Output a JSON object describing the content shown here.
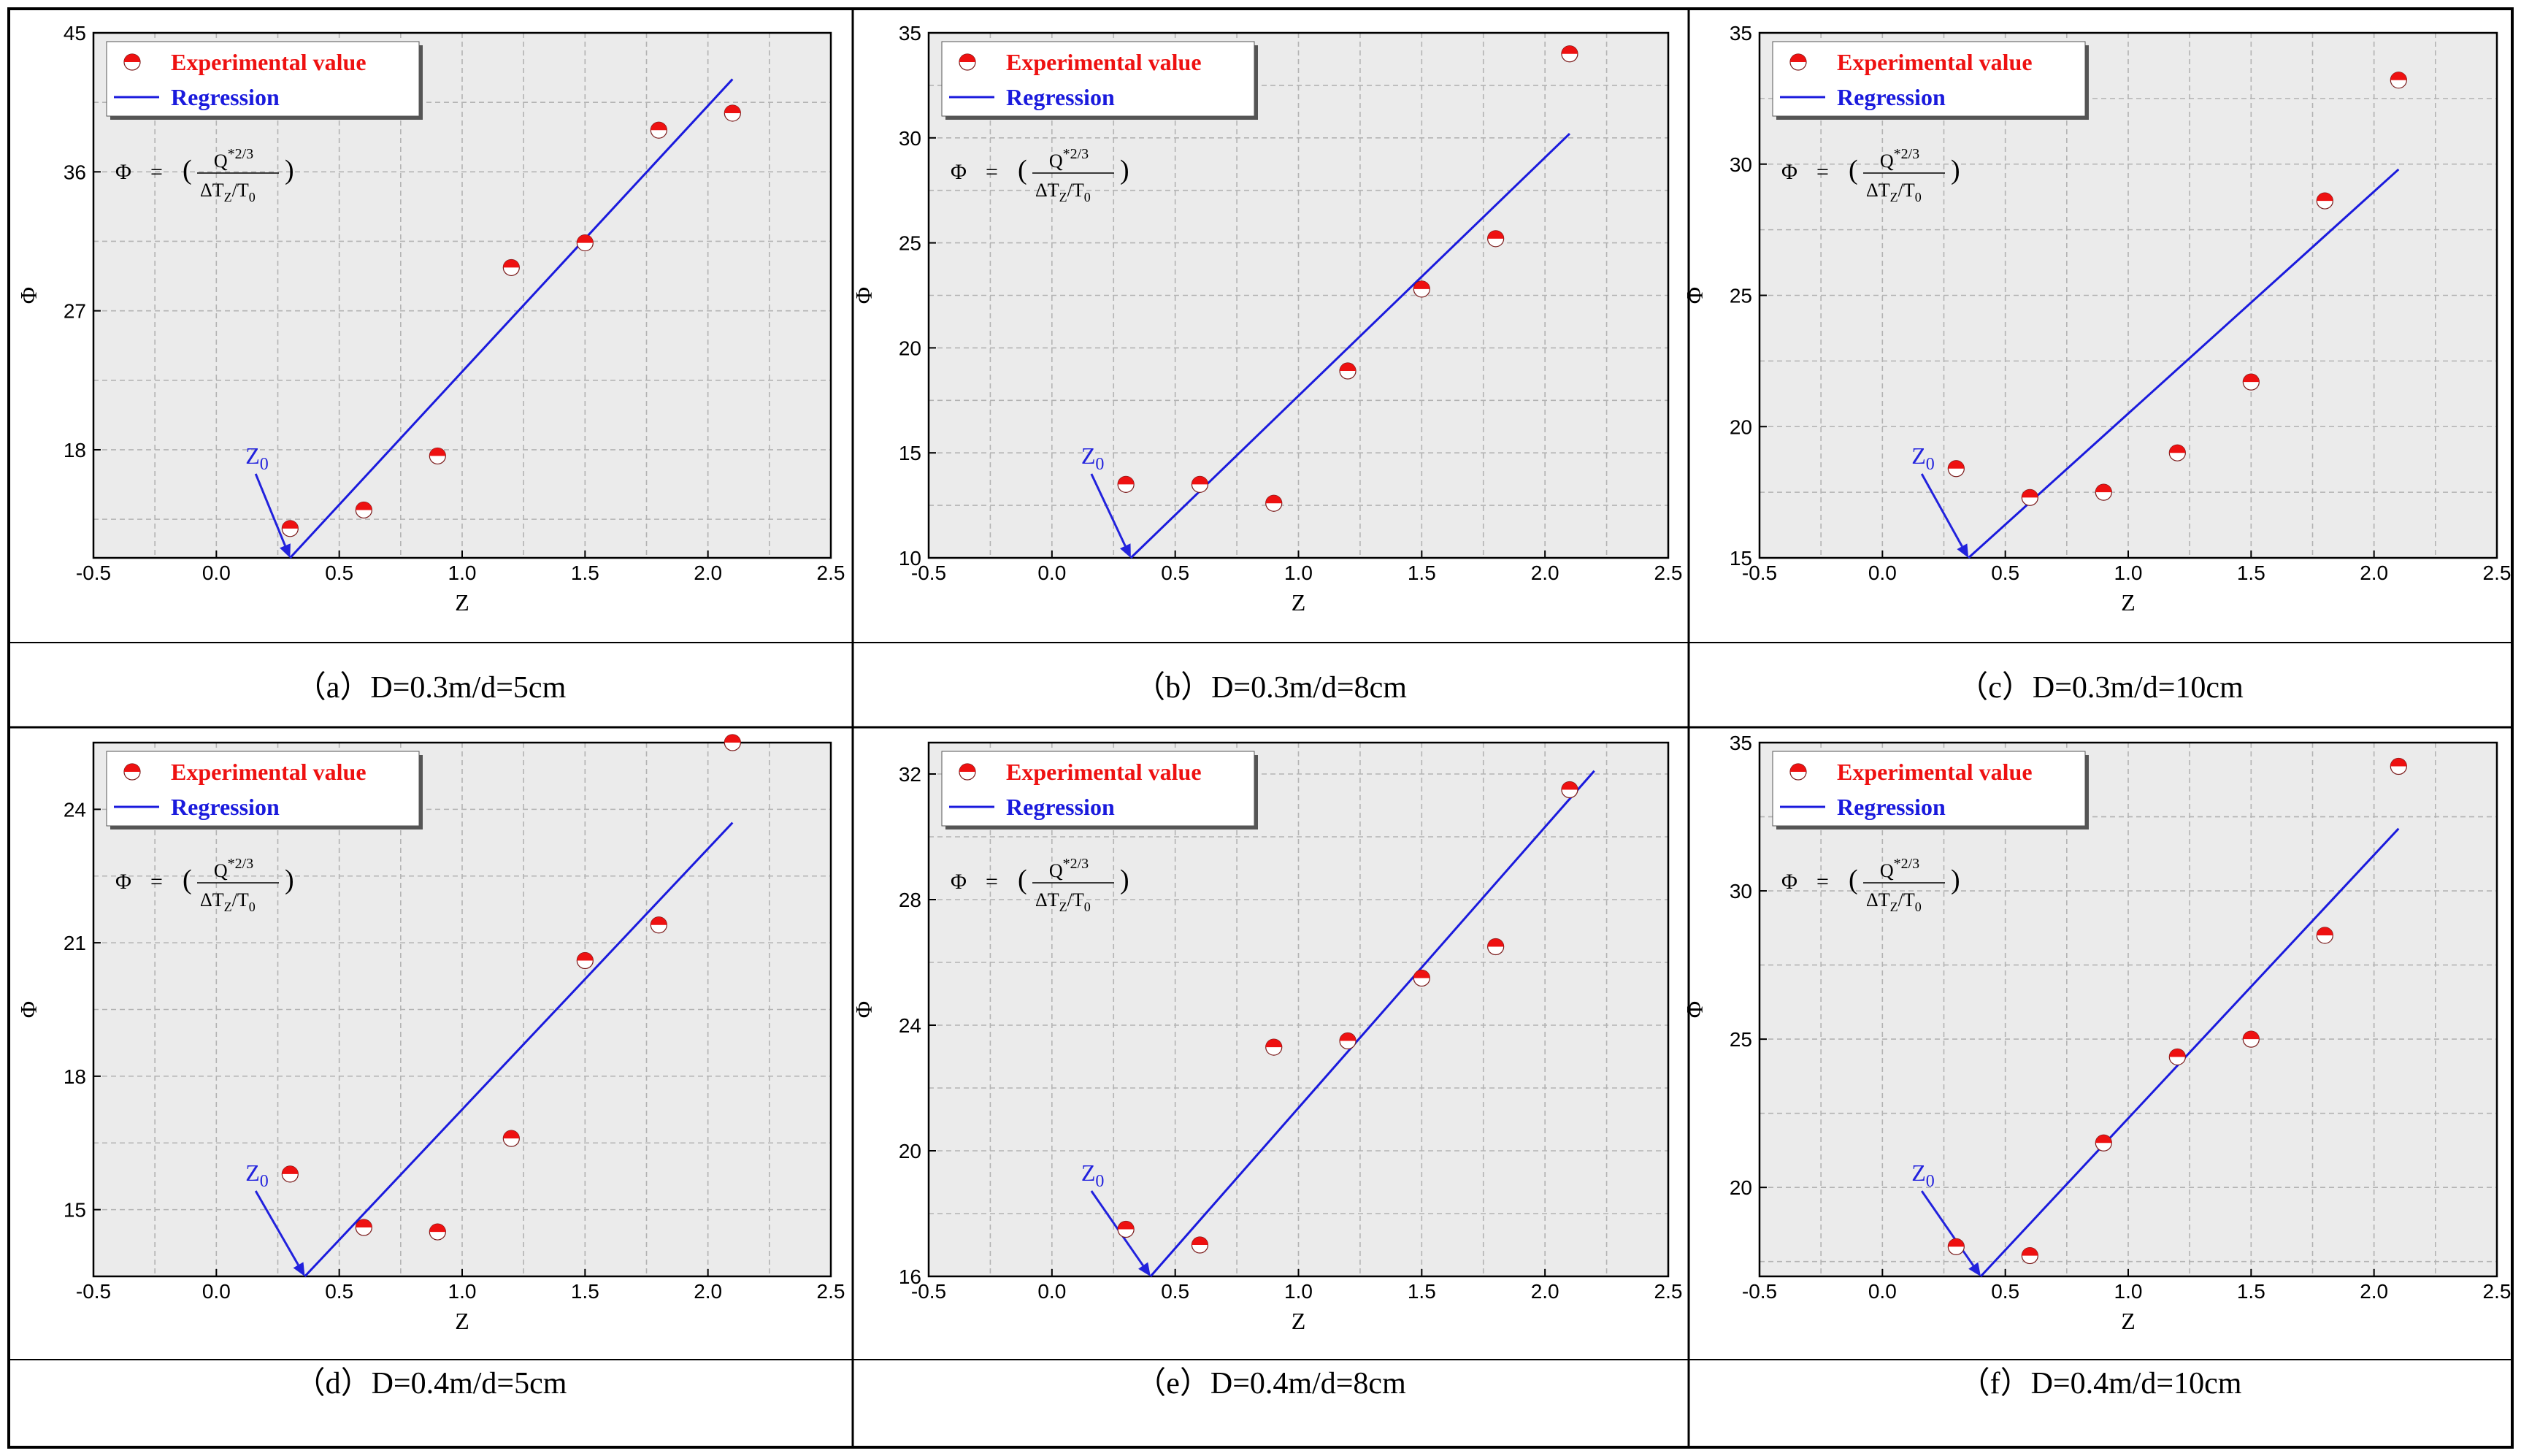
{
  "colors": {
    "point": "#ee1111",
    "regression": "#1a1add",
    "z0": "#2222dd",
    "plot_bg": "#ebebeb",
    "grid": "#b3b3b3"
  },
  "legend": {
    "point_label": "Experimental value",
    "line_label": "Regression"
  },
  "formula": {
    "lhs": "Φ",
    "eq": "=",
    "lparen": "(",
    "rparen": ")",
    "numerator": "Q",
    "numerator_sup": "*2/3",
    "denominator_a": "ΔT",
    "denominator_sub_z": "Z",
    "denominator_b": "/T",
    "denominator_sub_0": "0"
  },
  "z0_label": {
    "main": "Z",
    "sub": "0"
  },
  "chart_data": [
    {
      "type": "scatter",
      "title": "(a) D=0.3m/d=5cm",
      "caption": "（a）D=0.3m/d=5cm",
      "xlabel": "Z",
      "ylabel": "Φ",
      "xlim": [
        -0.5,
        2.5
      ],
      "ylim": [
        11,
        45
      ],
      "xticks": [
        -0.5,
        0.0,
        0.5,
        1.0,
        1.5,
        2.0,
        2.5
      ],
      "xtick_labels": [
        "-0.5",
        "0.0",
        "0.5",
        "1.0",
        "1.5",
        "2.0",
        "2.5"
      ],
      "yticks": [
        18,
        27,
        36,
        45
      ],
      "ytick_labels": [
        "18",
        "27",
        "36",
        "45"
      ],
      "grid": true,
      "legend_position": "top-left",
      "series": [
        {
          "name": "Experimental value",
          "type": "scatter",
          "x": [
            0.3,
            0.6,
            0.9,
            1.2,
            1.5,
            1.8,
            2.1
          ],
          "y": [
            12.9,
            14.1,
            17.6,
            29.8,
            31.4,
            38.7,
            39.8
          ]
        },
        {
          "name": "Regression",
          "type": "line",
          "x": [
            0.3,
            2.1
          ],
          "y": [
            11.0,
            42.0
          ]
        }
      ],
      "z0": 0.3
    },
    {
      "type": "scatter",
      "title": "(b) D=0.3m/d=8cm",
      "caption": "（b）D=0.3m/d=8cm",
      "xlabel": "Z",
      "ylabel": "Φ",
      "xlim": [
        -0.5,
        2.5
      ],
      "ylim": [
        10,
        35
      ],
      "xticks": [
        -0.5,
        0.0,
        0.5,
        1.0,
        1.5,
        2.0,
        2.5
      ],
      "xtick_labels": [
        "-0.5",
        "0.0",
        "0.5",
        "1.0",
        "1.5",
        "2.0",
        "2.5"
      ],
      "yticks": [
        10,
        15,
        20,
        25,
        30,
        35
      ],
      "ytick_labels": [
        "10",
        "15",
        "20",
        "25",
        "30",
        "35"
      ],
      "grid": true,
      "legend_position": "top-left",
      "series": [
        {
          "name": "Experimental value",
          "type": "scatter",
          "x": [
            0.3,
            0.6,
            0.9,
            1.2,
            1.5,
            1.8,
            2.1
          ],
          "y": [
            13.5,
            13.5,
            12.6,
            18.9,
            22.8,
            25.2,
            34.0
          ]
        },
        {
          "name": "Regression",
          "type": "line",
          "x": [
            0.32,
            2.1
          ],
          "y": [
            10.0,
            30.2
          ]
        }
      ],
      "z0": 0.32
    },
    {
      "type": "scatter",
      "title": "(c) D=0.3m/d=10cm",
      "caption": "（c）D=0.3m/d=10cm",
      "xlabel": "Z",
      "ylabel": "Φ",
      "xlim": [
        -0.5,
        2.5
      ],
      "ylim": [
        15,
        35
      ],
      "xticks": [
        -0.5,
        0.0,
        0.5,
        1.0,
        1.5,
        2.0,
        2.5
      ],
      "xtick_labels": [
        "-0.5",
        "0.0",
        "0.5",
        "1.0",
        "1.5",
        "2.0",
        "2.5"
      ],
      "yticks": [
        15,
        20,
        25,
        30,
        35
      ],
      "ytick_labels": [
        "15",
        "20",
        "25",
        "30",
        "35"
      ],
      "grid": true,
      "legend_position": "top-left",
      "series": [
        {
          "name": "Experimental value",
          "type": "scatter",
          "x": [
            0.3,
            0.6,
            0.9,
            1.2,
            1.5,
            1.8,
            2.1
          ],
          "y": [
            18.4,
            17.3,
            17.5,
            19.0,
            21.7,
            28.6,
            33.2
          ]
        },
        {
          "name": "Regression",
          "type": "line",
          "x": [
            0.35,
            2.1
          ],
          "y": [
            15.0,
            29.8
          ]
        }
      ],
      "z0": 0.35
    },
    {
      "type": "scatter",
      "title": "(d) D=0.4m/d=5cm",
      "caption": "（d）D=0.4m/d=5cm",
      "xlabel": "Z",
      "ylabel": "Φ",
      "xlim": [
        -0.5,
        2.5
      ],
      "ylim": [
        13.5,
        25.5
      ],
      "xticks": [
        -0.5,
        0.0,
        0.5,
        1.0,
        1.5,
        2.0,
        2.5
      ],
      "xtick_labels": [
        "-0.5",
        "0.0",
        "0.5",
        "1.0",
        "1.5",
        "2.0",
        "2.5"
      ],
      "yticks": [
        15,
        18,
        21,
        24
      ],
      "ytick_labels": [
        "15",
        "18",
        "21",
        "24"
      ],
      "grid": true,
      "legend_position": "top-left",
      "series": [
        {
          "name": "Experimental value",
          "type": "scatter",
          "x": [
            0.3,
            0.6,
            0.9,
            1.2,
            1.5,
            1.8,
            2.1
          ],
          "y": [
            15.8,
            14.6,
            14.5,
            16.6,
            20.6,
            21.4,
            25.5
          ]
        },
        {
          "name": "Regression",
          "type": "line",
          "x": [
            0.36,
            2.1
          ],
          "y": [
            13.5,
            23.7
          ]
        }
      ],
      "z0": 0.36
    },
    {
      "type": "scatter",
      "title": "(e) D=0.4m/d=8cm",
      "caption": "（e）D=0.4m/d=8cm",
      "xlabel": "Z",
      "ylabel": "Φ",
      "xlim": [
        -0.5,
        2.5
      ],
      "ylim": [
        16,
        33
      ],
      "xticks": [
        -0.5,
        0.0,
        0.5,
        1.0,
        1.5,
        2.0,
        2.5
      ],
      "xtick_labels": [
        "-0.5",
        "0.0",
        "0.5",
        "1.0",
        "1.5",
        "2.0",
        "2.5"
      ],
      "yticks": [
        16,
        20,
        24,
        28,
        32
      ],
      "ytick_labels": [
        "16",
        "20",
        "24",
        "28",
        "32"
      ],
      "grid": true,
      "legend_position": "top-left",
      "series": [
        {
          "name": "Experimental value",
          "type": "scatter",
          "x": [
            0.3,
            0.6,
            0.9,
            1.2,
            1.5,
            1.8,
            2.1
          ],
          "y": [
            17.5,
            17.0,
            23.3,
            23.5,
            25.5,
            26.5,
            31.5
          ]
        },
        {
          "name": "Regression",
          "type": "line",
          "x": [
            0.4,
            2.2
          ],
          "y": [
            16.0,
            32.1
          ]
        }
      ],
      "z0": 0.4
    },
    {
      "type": "scatter",
      "title": "(f) D=0.4m/d=10cm",
      "caption": "（f）D=0.4m/d=10cm",
      "xlabel": "Z",
      "ylabel": "Φ",
      "xlim": [
        -0.5,
        2.5
      ],
      "ylim": [
        17,
        35
      ],
      "xticks": [
        -0.5,
        0.0,
        0.5,
        1.0,
        1.5,
        2.0,
        2.5
      ],
      "xtick_labels": [
        "-0.5",
        "0.0",
        "0.5",
        "1.0",
        "1.5",
        "2.0",
        "2.5"
      ],
      "yticks": [
        20,
        25,
        30,
        35
      ],
      "ytick_labels": [
        "20",
        "25",
        "30",
        "35"
      ],
      "grid": true,
      "legend_position": "top-left",
      "series": [
        {
          "name": "Experimental value",
          "type": "scatter",
          "x": [
            0.3,
            0.6,
            0.9,
            1.2,
            1.5,
            1.8,
            2.1
          ],
          "y": [
            18.0,
            17.7,
            21.5,
            24.4,
            25.0,
            28.5,
            34.2
          ]
        },
        {
          "name": "Regression",
          "type": "line",
          "x": [
            0.4,
            2.1
          ],
          "y": [
            17.0,
            32.1
          ]
        }
      ],
      "z0": 0.4
    }
  ]
}
